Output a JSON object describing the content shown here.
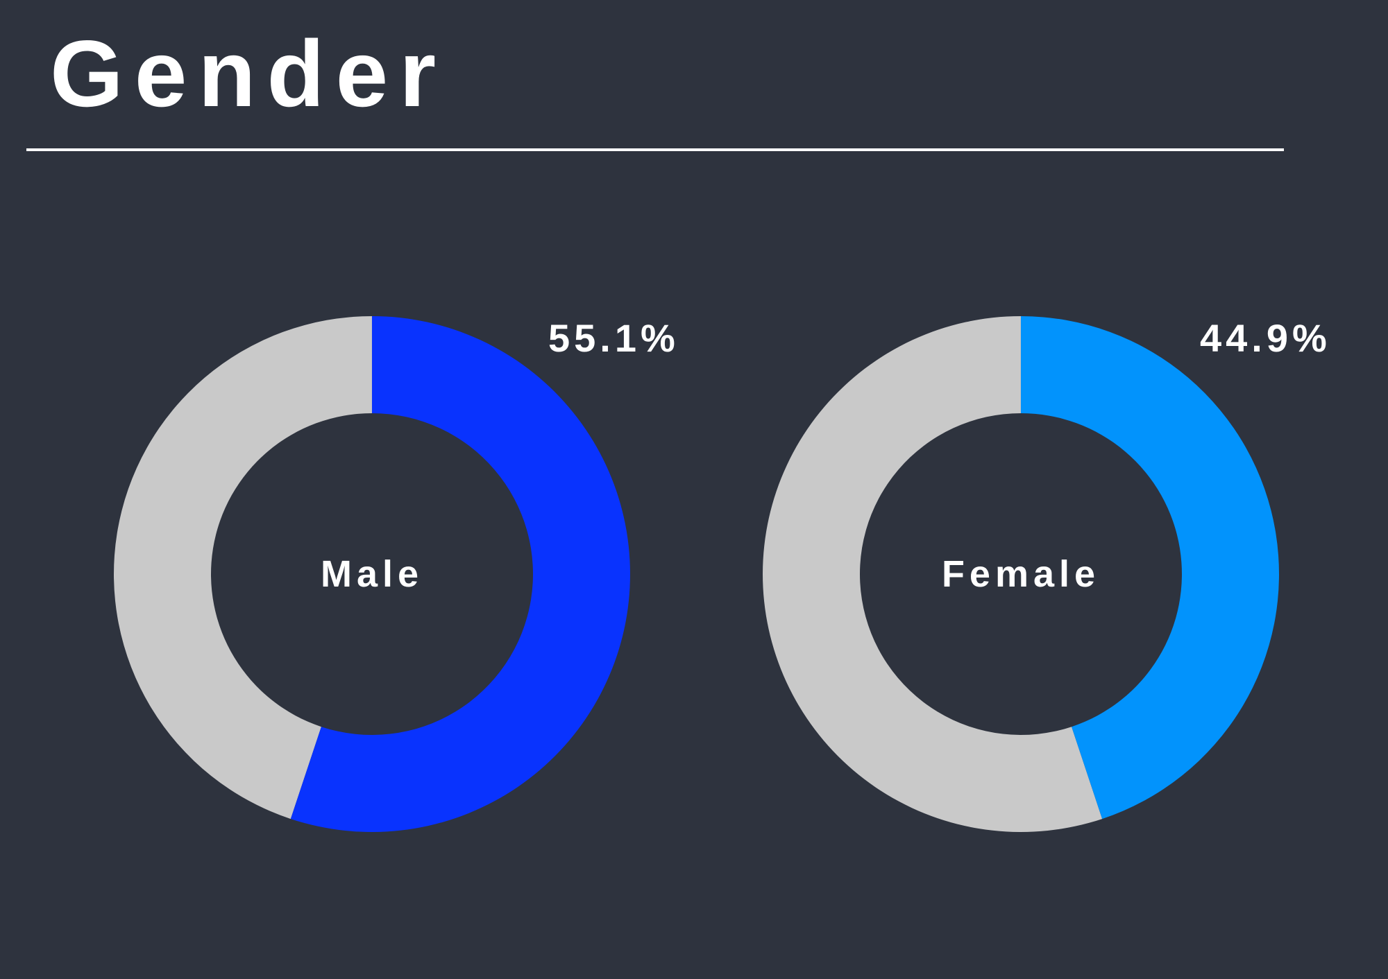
{
  "title": "Gender",
  "colors": {
    "background": "#2e333e",
    "track": "#c9c9c9",
    "male": "#0933fe",
    "female": "#0293fc",
    "text": "#ffffff"
  },
  "chart_data": [
    {
      "type": "pie",
      "label": "Male",
      "value": 55.1,
      "value_label": "55.1%",
      "total": 100,
      "color_key": "male"
    },
    {
      "type": "pie",
      "label": "Female",
      "value": 44.9,
      "value_label": "44.9%",
      "total": 100,
      "color_key": "female"
    }
  ]
}
